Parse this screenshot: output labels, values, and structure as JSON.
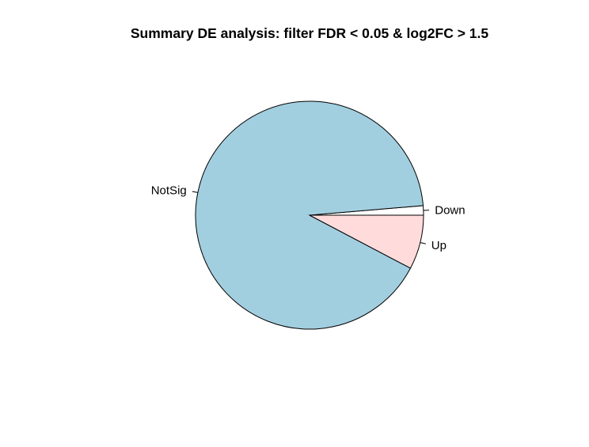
{
  "chart_data": {
    "type": "pie",
    "title": "Summary DE analysis: filter FDR < 0.05 & log2FC > 1.5",
    "slices": [
      {
        "label": "Down",
        "value": 0.0134,
        "color": "#ffffff"
      },
      {
        "label": "NotSig",
        "value": 0.9096,
        "color": "#a2cfe0"
      },
      {
        "label": "Up",
        "value": 0.077,
        "color": "#ffdcdb"
      }
    ],
    "start": "3 o'clock",
    "direction": "counter-clockwise"
  }
}
